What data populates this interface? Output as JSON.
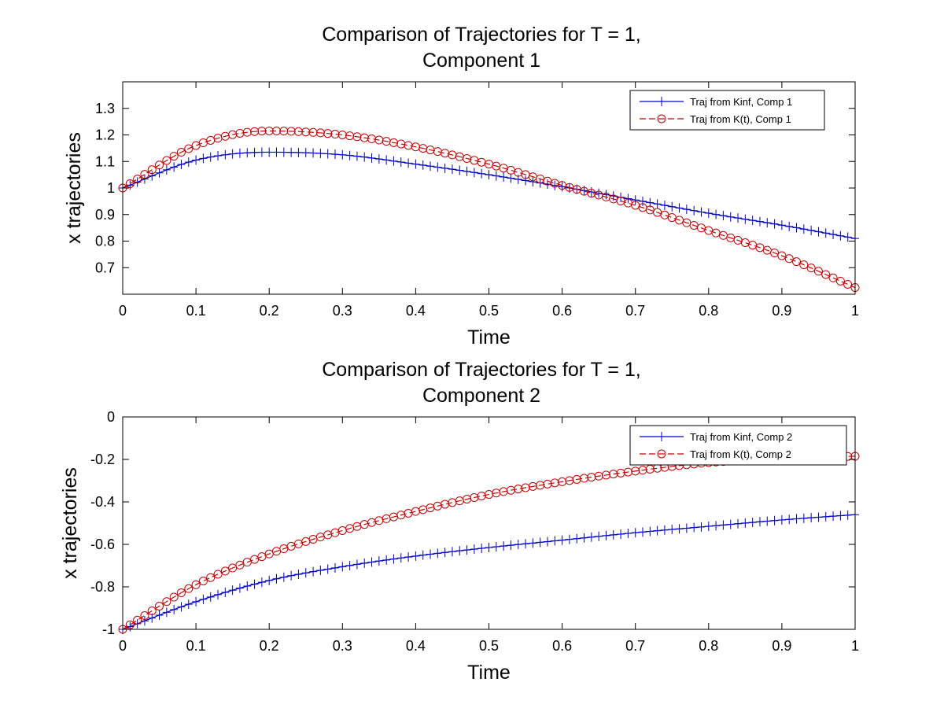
{
  "colors": {
    "kinf": "#0000cc",
    "kt": "#cc0000",
    "axis": "#000000"
  },
  "chart_data": [
    {
      "type": "line",
      "title": [
        "Comparison of Trajectories for T = 1,",
        "Component 1"
      ],
      "xlabel": "Time",
      "ylabel": "x trajectories",
      "xlim": [
        0,
        1
      ],
      "ylim": [
        0.6,
        1.4
      ],
      "xticks": [
        0,
        0.1,
        0.2,
        0.3,
        0.4,
        0.5,
        0.6,
        0.7,
        0.8,
        0.9,
        1
      ],
      "yticks": [
        0.7,
        0.8,
        0.9,
        1,
        1.1,
        1.2,
        1.3
      ],
      "xtick_labels": [
        "0",
        "0.1",
        "0.2",
        "0.3",
        "0.4",
        "0.5",
        "0.6",
        "0.7",
        "0.8",
        "0.9",
        "1"
      ],
      "ytick_labels": [
        "0.7",
        "0.8",
        "0.9",
        "1",
        "1.1",
        "1.2",
        "1.3"
      ],
      "grid": false,
      "legend_position": "top-right",
      "x": [
        0,
        0.1,
        0.2,
        0.3,
        0.4,
        0.5,
        0.6,
        0.7,
        0.8,
        0.9,
        1
      ],
      "series": [
        {
          "name": "Traj from Kinf, Comp 1",
          "marker": "plus",
          "linestyle": "solid",
          "colorKey": "kinf",
          "values": [
            1.0,
            1.105,
            1.135,
            1.125,
            1.09,
            1.05,
            1.005,
            0.955,
            0.905,
            0.86,
            0.81
          ]
        },
        {
          "name": "Traj from K(t), Comp 1",
          "marker": "circle",
          "linestyle": "dashed",
          "colorKey": "kt",
          "values": [
            1.0,
            1.16,
            1.215,
            1.2,
            1.155,
            1.09,
            1.01,
            0.935,
            0.84,
            0.745,
            0.625
          ]
        }
      ]
    },
    {
      "type": "line",
      "title": [
        "Comparison of Trajectories for T = 1,",
        "Component 2"
      ],
      "xlabel": "Time",
      "ylabel": "x trajectories",
      "xlim": [
        0,
        1
      ],
      "ylim": [
        -1,
        0
      ],
      "xticks": [
        0,
        0.1,
        0.2,
        0.3,
        0.4,
        0.5,
        0.6,
        0.7,
        0.8,
        0.9,
        1
      ],
      "yticks": [
        -1,
        -0.8,
        -0.6,
        -0.4,
        -0.2,
        0
      ],
      "xtick_labels": [
        "0",
        "0.1",
        "0.2",
        "0.3",
        "0.4",
        "0.5",
        "0.6",
        "0.7",
        "0.8",
        "0.9",
        "1"
      ],
      "ytick_labels": [
        "-1",
        "-0.8",
        "-0.6",
        "-0.4",
        "-0.2",
        "0"
      ],
      "grid": false,
      "legend_position": "top-right",
      "x": [
        0,
        0.1,
        0.2,
        0.3,
        0.4,
        0.5,
        0.6,
        0.7,
        0.8,
        0.9,
        1
      ],
      "series": [
        {
          "name": "Traj from Kinf, Comp 2",
          "marker": "plus",
          "linestyle": "solid",
          "colorKey": "kinf",
          "values": [
            -1.0,
            -0.87,
            -0.77,
            -0.705,
            -0.655,
            -0.615,
            -0.58,
            -0.545,
            -0.515,
            -0.485,
            -0.46
          ]
        },
        {
          "name": "Traj from K(t), Comp 2",
          "marker": "circle",
          "linestyle": "dashed",
          "colorKey": "kt",
          "values": [
            -1.0,
            -0.79,
            -0.645,
            -0.535,
            -0.445,
            -0.365,
            -0.305,
            -0.255,
            -0.215,
            -0.195,
            -0.185
          ]
        }
      ]
    }
  ]
}
